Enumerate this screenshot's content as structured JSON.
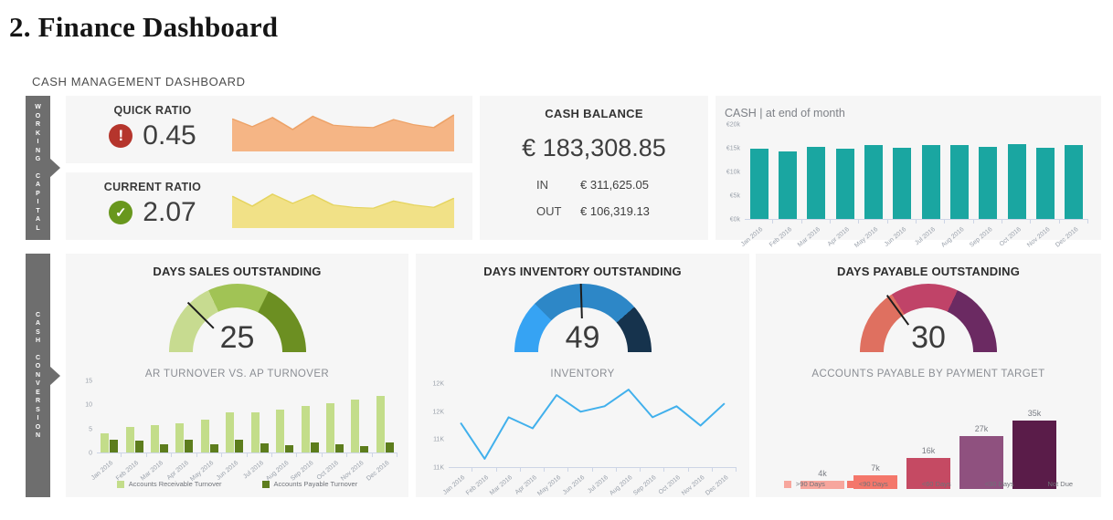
{
  "page": {
    "title": "2. Finance Dashboard",
    "dashboard_label": "CASH MANAGEMENT DASHBOARD"
  },
  "sidebar_tabs": {
    "working_capital": "WORKING CAPITAL",
    "cash_conversion": "CASH CONVERSION"
  },
  "months": [
    "Jan 2016",
    "Feb 2016",
    "Mar 2016",
    "Apr 2016",
    "May 2016",
    "Jun 2016",
    "Jul 2016",
    "Aug 2016",
    "Sep 2016",
    "Oct 2016",
    "Nov 2016",
    "Dec 2016"
  ],
  "kpis": {
    "quick_ratio": {
      "label": "QUICK RATIO",
      "value": "0.45",
      "status": "alert",
      "status_icon": "exclamation",
      "status_color": "#b5352c"
    },
    "current_ratio": {
      "label": "CURRENT RATIO",
      "value": "2.07",
      "status": "ok",
      "status_icon": "check",
      "status_color": "#68971d"
    },
    "cash_balance": {
      "title": "CASH BALANCE",
      "value": "€ 183,308.85",
      "in_label": "IN",
      "in_value": "€ 311,625.05",
      "out_label": "OUT",
      "out_value": "€ 106,319.13"
    },
    "dso": {
      "title": "DAYS SALES OUTSTANDING",
      "value": "25"
    },
    "dio": {
      "title": "DAYS INVENTORY OUTSTANDING",
      "value": "49"
    },
    "dpo": {
      "title": "DAYS PAYABLE OUTSTANDING",
      "value": "30"
    }
  },
  "chart_data": [
    {
      "id": "quick_ratio_trend",
      "type": "area",
      "title": "",
      "note": "unlabeled sparkline next to QUICK RATIO, 12 monthly points, relative heights",
      "values": [
        0.82,
        0.62,
        0.85,
        0.55,
        0.88,
        0.66,
        0.62,
        0.6,
        0.8,
        0.67,
        0.6,
        0.92
      ],
      "fill": "#f5b585",
      "stroke": "#eda267"
    },
    {
      "id": "current_ratio_trend",
      "type": "area",
      "title": "",
      "note": "unlabeled sparkline next to CURRENT RATIO, 12 monthly points, relative heights",
      "values": [
        0.8,
        0.55,
        0.85,
        0.62,
        0.83,
        0.58,
        0.52,
        0.5,
        0.68,
        0.58,
        0.52,
        0.75
      ],
      "fill": "#f1e187",
      "stroke": "#e5d45f"
    },
    {
      "id": "cash_end_of_month",
      "type": "bar",
      "title": "CASH | at end of month",
      "categories": [
        "Jan 2016",
        "Feb 2016",
        "Mar 2016",
        "Apr 2016",
        "May 2016",
        "Jun 2016",
        "Jul 2016",
        "Aug 2016",
        "Sep 2016",
        "Oct 2016",
        "Nov 2016",
        "Dec 2016"
      ],
      "values_k": [
        15.0,
        14.3,
        15.4,
        15.0,
        15.7,
        15.2,
        15.7,
        15.8,
        15.4,
        15.9,
        15.2,
        15.7
      ],
      "ylim_k": [
        0,
        20
      ],
      "yticks": [
        "€0k",
        "€5k",
        "€10k",
        "€15k",
        "€20k"
      ],
      "color": "#1aa6a1",
      "legend": "none"
    },
    {
      "id": "dso_gauge",
      "type": "gauge",
      "title": "DAYS SALES OUTSTANDING",
      "value": 25,
      "min": 0,
      "max": 100,
      "segments": [
        {
          "color": "#c7db90",
          "to": 36
        },
        {
          "color": "#a1c355",
          "to": 65
        },
        {
          "color": "#6c8f22",
          "to": 100
        }
      ]
    },
    {
      "id": "ar_vs_ap_turnover",
      "type": "bar",
      "title": "AR TURNOVER VS. AP TURNOVER",
      "categories": [
        "Jan 2016",
        "Feb 2016",
        "Mar 2016",
        "Apr 2016",
        "May 2016",
        "Jun 2016",
        "Jul 2016",
        "Aug 2016",
        "Sep 2016",
        "Oct 2016",
        "Nov 2016",
        "Dec 2016"
      ],
      "series": [
        {
          "name": "Accounts Receivable Turnover",
          "color": "#c3dd8a",
          "values": [
            4.0,
            5.4,
            5.8,
            6.1,
            7.0,
            8.5,
            8.5,
            9.0,
            9.8,
            10.4,
            11.2,
            11.9
          ]
        },
        {
          "name": "Accounts Payable Turnover",
          "color": "#5d7d1d",
          "values": [
            2.6,
            2.5,
            1.7,
            2.7,
            1.8,
            2.6,
            1.9,
            1.5,
            2.2,
            1.8,
            1.4,
            2.2
          ]
        }
      ],
      "ylim": [
        0,
        15
      ],
      "yticks": [
        "0",
        "5",
        "10",
        "15"
      ],
      "legend": "bottom"
    },
    {
      "id": "dio_gauge",
      "type": "gauge",
      "title": "DAYS INVENTORY OUTSTANDING",
      "value": 49,
      "min": 0,
      "max": 100,
      "segments": [
        {
          "color": "#36a3f3",
          "to": 25
        },
        {
          "color": "#2d87c7",
          "to": 77
        },
        {
          "color": "#16334d",
          "to": 100
        }
      ]
    },
    {
      "id": "inventory",
      "type": "line",
      "title": "INVENTORY",
      "categories": [
        "Jan 2016",
        "Feb 2016",
        "Mar 2016",
        "Apr 2016",
        "May 2016",
        "Jun 2016",
        "Jul 2016",
        "Aug 2016",
        "Sep 2016",
        "Oct 2016",
        "Nov 2016",
        "Dec 2016"
      ],
      "values_k": [
        11.8,
        11.15,
        11.9,
        11.7,
        12.3,
        12.0,
        12.1,
        12.4,
        11.9,
        12.1,
        11.75,
        12.15
      ],
      "ylim_k": [
        11,
        12.5
      ],
      "yticks": [
        "11K",
        "11K",
        "12K",
        "12K"
      ],
      "color": "#41b0ec",
      "legend": "none"
    },
    {
      "id": "dpo_gauge",
      "type": "gauge",
      "title": "DAYS PAYABLE OUTSTANDING",
      "value": 30,
      "min": 0,
      "max": 100,
      "segments": [
        {
          "color": "#df7060",
          "to": 32
        },
        {
          "color": "#c04368",
          "to": 64
        },
        {
          "color": "#6b2a62",
          "to": 100
        }
      ]
    },
    {
      "id": "ap_by_payment_target",
      "type": "bar",
      "title": "ACCOUNTS PAYABLE BY PAYMENT TARGET",
      "categories": [
        ">90 Days",
        "<90 Days",
        "<60 Days",
        "<30 Days",
        "Not Due"
      ],
      "values_k": [
        4,
        7,
        16,
        27,
        35
      ],
      "bar_labels": [
        "4k",
        "7k",
        "16k",
        "27k",
        "35k"
      ],
      "colors": [
        "#f7a69d",
        "#f4776b",
        "#c54a63",
        "#8f517f",
        "#5a1c49"
      ],
      "ylim_k": [
        0,
        35
      ],
      "legend": "bottom"
    }
  ]
}
